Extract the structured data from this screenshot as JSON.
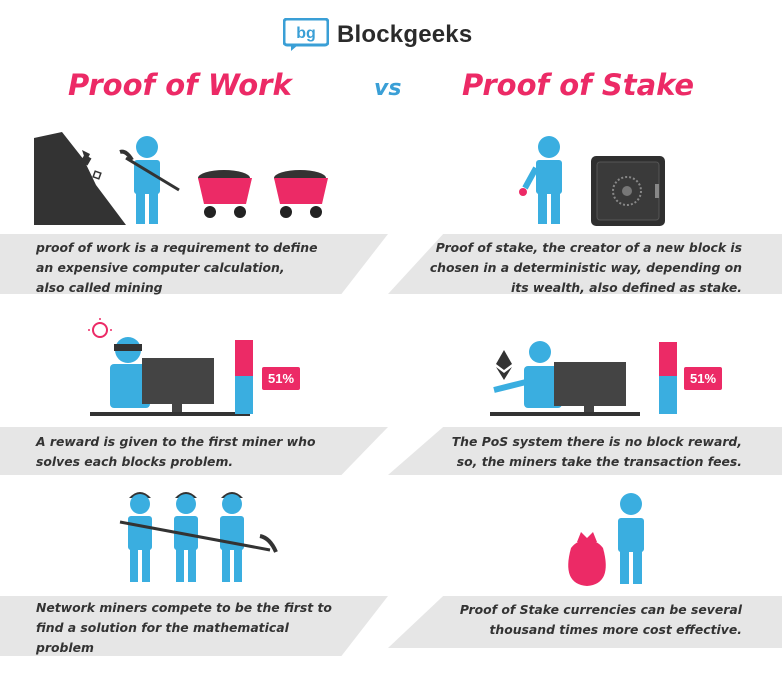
{
  "brand": {
    "name": "Blockgeeks",
    "icon": "bg-logo-icon"
  },
  "header": {
    "left_title": "Proof of Work",
    "vs": "vs",
    "right_title": "Proof of Stake"
  },
  "pow": {
    "captions": [
      [
        "proof of work is a requirement to define",
        "an expensive computer calculation,",
        "also called mining"
      ],
      [
        "A reward is given to the first miner who",
        "solves each blocks problem."
      ],
      [
        "Network miners compete to be the first to",
        "find a solution for the mathematical",
        "problem"
      ]
    ],
    "percent": "51%"
  },
  "pos": {
    "captions": [
      [
        "Proof of stake, the creator of a new block is",
        "chosen in a deterministic way, depending on",
        "its wealth, also defined as stake."
      ],
      [
        "The PoS system there is no block reward,",
        "so, the miners take the transaction fees."
      ],
      [
        "Proof of Stake currencies can be several",
        "thousand times more cost effective."
      ]
    ],
    "percent": "51%"
  },
  "colors": {
    "pink": "#ec2a66",
    "blue": "#3aaee0",
    "dark": "#2b2b2b",
    "band": "#e6e6e6"
  }
}
